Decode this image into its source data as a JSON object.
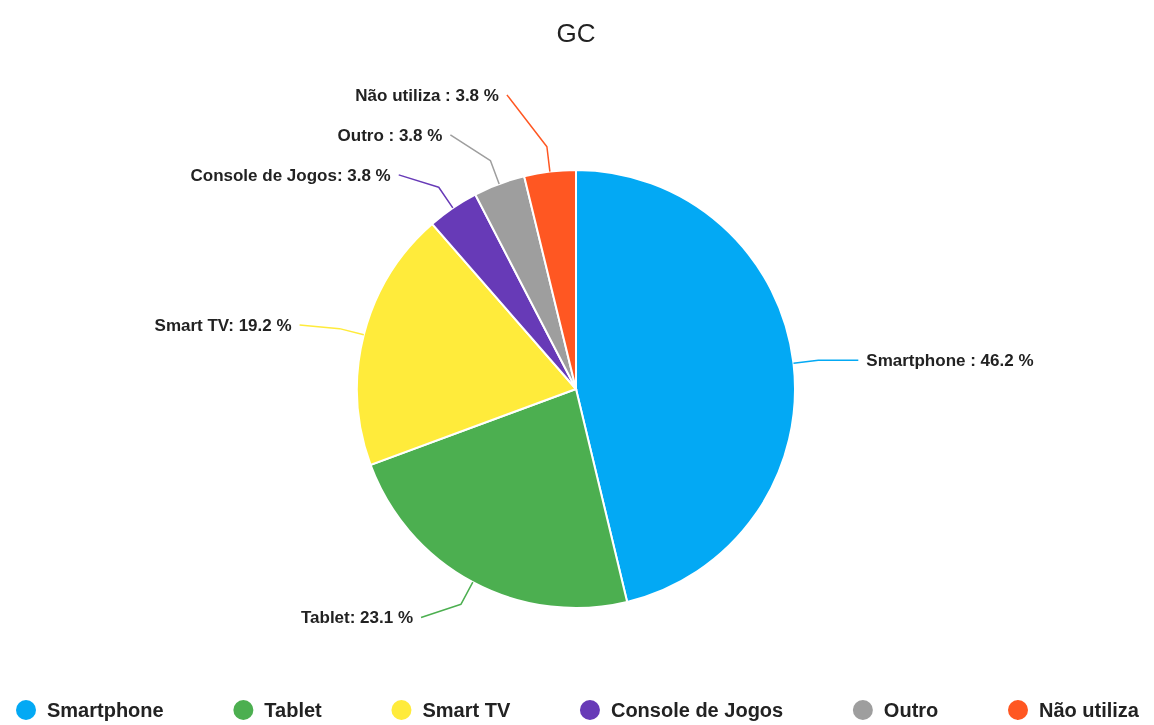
{
  "chart_data": {
    "type": "pie",
    "title": "GC",
    "categories": [
      "Smartphone",
      "Tablet",
      "Smart TV",
      "Console de Jogos",
      "Outro",
      "Não utiliza"
    ],
    "values": [
      46.2,
      23.1,
      19.2,
      3.8,
      3.8,
      3.8
    ],
    "colors": [
      "#03a9f4",
      "#4caf50",
      "#ffeb3b",
      "#673ab7",
      "#9e9e9e",
      "#ff5722"
    ],
    "value_labels": [
      "Smartphone : 46.2 %",
      "Tablet: 23.1 %",
      "Smart TV: 19.2 %",
      "Console de Jogos: 3.8 %",
      "Outro : 3.8 %",
      "Não utiliza : 3.8 %"
    ],
    "legend": "bottom"
  }
}
